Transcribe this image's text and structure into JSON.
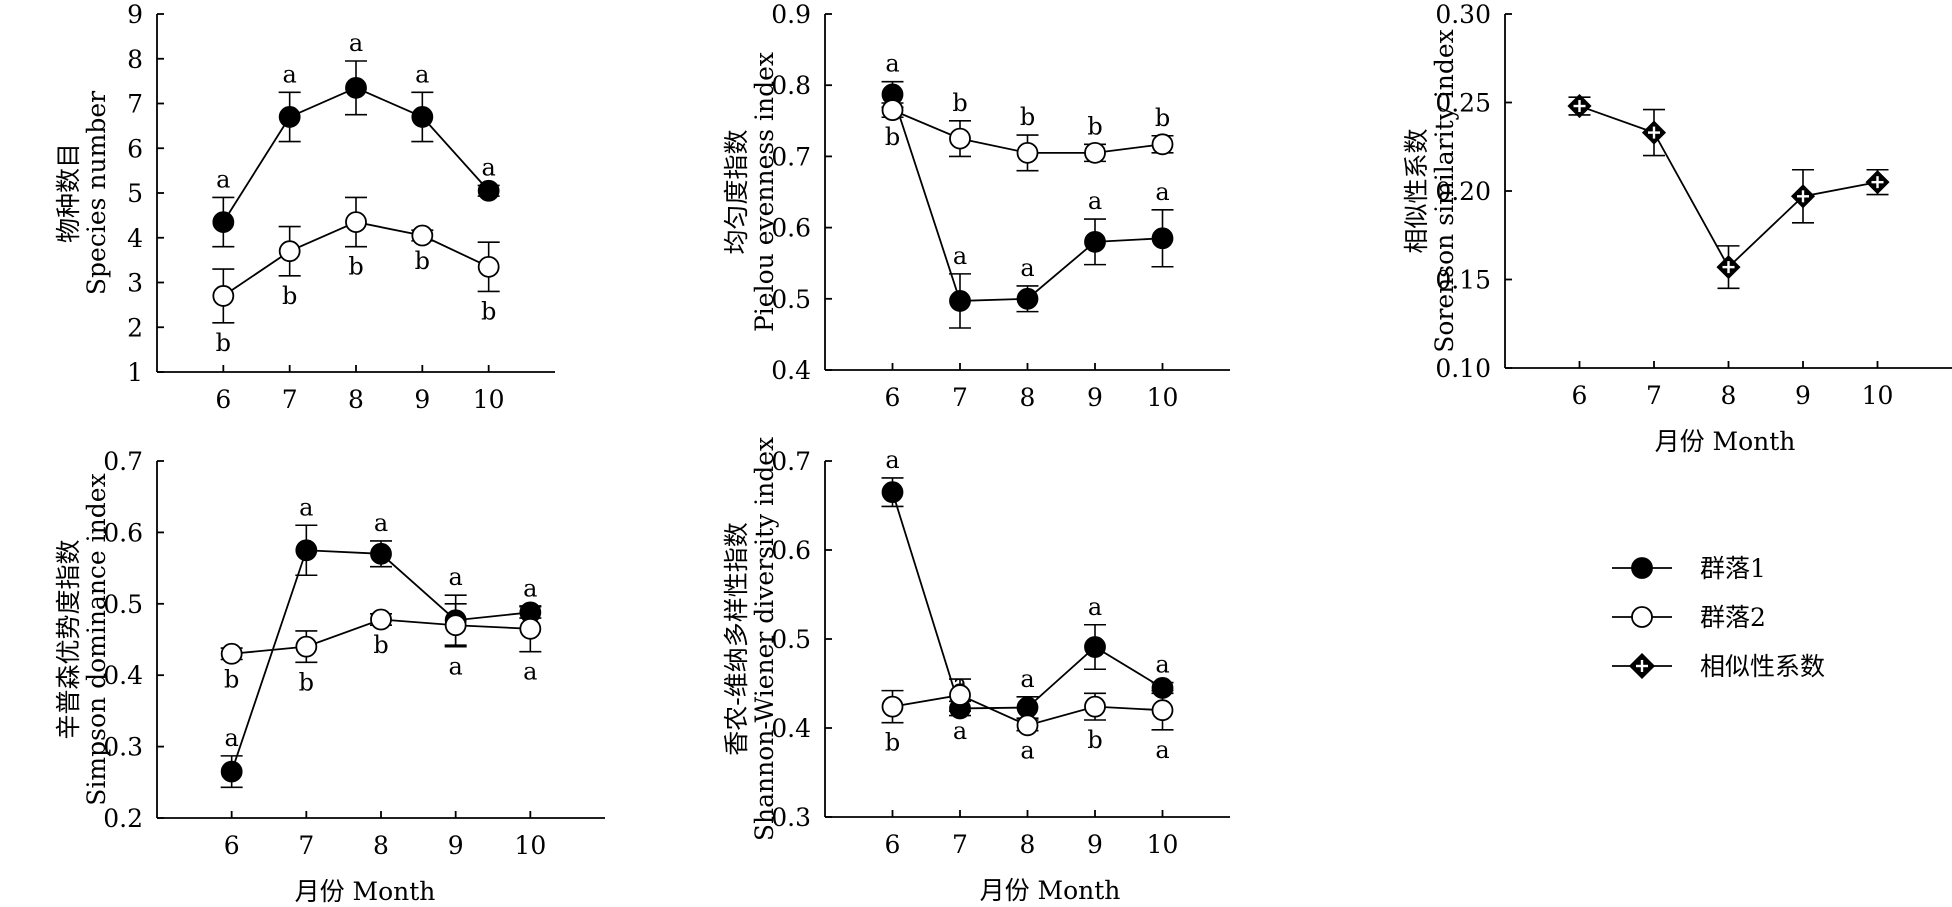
{
  "colors": {
    "ink": "#000000",
    "paper": "#ffffff"
  },
  "legend": {
    "items": [
      {
        "label": "群落1",
        "marker": "filled-circle"
      },
      {
        "label": "群落2",
        "marker": "open-circle"
      },
      {
        "label": "相似性系数",
        "marker": "diamond-cross"
      }
    ]
  },
  "chart_data": [
    {
      "id": "species",
      "type": "line",
      "ylabel_cn": "物种数目",
      "ylabel_en": "Species number",
      "xlabel": "",
      "x": [
        6,
        7,
        8,
        9,
        10
      ],
      "ylim": [
        1,
        9
      ],
      "yticks": [
        1,
        2,
        3,
        4,
        5,
        6,
        7,
        8,
        9
      ],
      "ytick_labels": [
        "1",
        "2",
        "3",
        "4",
        "5",
        "6",
        "7",
        "8",
        "9"
      ],
      "series": [
        {
          "name": "群落1",
          "marker": "filled",
          "values": [
            4.35,
            6.7,
            7.35,
            6.7,
            5.05
          ],
          "err": [
            0.55,
            0.55,
            0.6,
            0.55,
            0.12
          ],
          "labels": [
            "a",
            "a",
            "a",
            "a",
            "a"
          ],
          "label_pos": [
            "above",
            "above",
            "above",
            "above",
            "above"
          ]
        },
        {
          "name": "群落2",
          "marker": "open",
          "values": [
            2.7,
            3.7,
            4.35,
            4.05,
            3.35
          ],
          "err": [
            0.6,
            0.55,
            0.55,
            0.12,
            0.55
          ],
          "labels": [
            "b",
            "b",
            "b",
            "b",
            "b"
          ],
          "label_pos": [
            "below",
            "below",
            "below",
            "below",
            "below"
          ]
        }
      ]
    },
    {
      "id": "evenness",
      "type": "line",
      "ylabel_cn": "均匀度指数",
      "ylabel_en": "Pielou evenness index",
      "xlabel": "",
      "x": [
        6,
        7,
        8,
        9,
        10
      ],
      "ylim": [
        0.4,
        0.9
      ],
      "yticks": [
        0.4,
        0.5,
        0.6,
        0.7,
        0.8,
        0.9
      ],
      "ytick_labels": [
        "0.4",
        "0.5",
        "0.6",
        "0.7",
        "0.8",
        "0.9"
      ],
      "series": [
        {
          "name": "群落1",
          "marker": "filled",
          "values": [
            0.787,
            0.497,
            0.5,
            0.58,
            0.585
          ],
          "err": [
            0.018,
            0.038,
            0.018,
            0.032,
            0.04
          ],
          "labels": [
            "a",
            "a",
            "a",
            "a",
            "a"
          ],
          "label_pos": [
            "above",
            "above",
            "above",
            "above",
            "above"
          ]
        },
        {
          "name": "群落2",
          "marker": "open",
          "values": [
            0.765,
            0.725,
            0.705,
            0.705,
            0.717
          ],
          "err": [
            0.01,
            0.025,
            0.025,
            0.012,
            0.012
          ],
          "labels": [
            "b",
            "b",
            "b",
            "b",
            "b"
          ],
          "label_pos": [
            "below",
            "above",
            "above",
            "above",
            "above"
          ]
        }
      ]
    },
    {
      "id": "sorenson",
      "type": "line",
      "ylabel_cn": "相似性系数",
      "ylabel_en": "Sorenson similarity index",
      "xlabel": "月份 Month",
      "x": [
        6,
        7,
        8,
        9,
        10
      ],
      "ylim": [
        0.1,
        0.3
      ],
      "yticks": [
        0.1,
        0.15,
        0.2,
        0.25,
        0.3
      ],
      "ytick_labels": [
        "0.10",
        "0.15",
        "0.20",
        "0.25",
        "0.30"
      ],
      "series": [
        {
          "name": "相似性系数",
          "marker": "diamond",
          "values": [
            0.248,
            0.233,
            0.157,
            0.197,
            0.205
          ],
          "err": [
            0.005,
            0.013,
            0.012,
            0.015,
            0.007
          ],
          "labels": [
            "",
            "",
            "",
            "",
            ""
          ],
          "label_pos": [
            "above",
            "above",
            "above",
            "above",
            "above"
          ]
        }
      ]
    },
    {
      "id": "simpson",
      "type": "line",
      "ylabel_cn": "辛普森优势度指数",
      "ylabel_en": "Simpson dominance index",
      "xlabel": "月份 Month",
      "x": [
        6,
        7,
        8,
        9,
        10
      ],
      "ylim": [
        0.2,
        0.7
      ],
      "yticks": [
        0.2,
        0.3,
        0.4,
        0.5,
        0.6,
        0.7
      ],
      "ytick_labels": [
        "0.2",
        "0.3",
        "0.4",
        "0.5",
        "0.6",
        "0.7"
      ],
      "series": [
        {
          "name": "群落1",
          "marker": "filled",
          "values": [
            0.265,
            0.575,
            0.57,
            0.477,
            0.488
          ],
          "err": [
            0.022,
            0.035,
            0.018,
            0.035,
            0.008
          ],
          "labels": [
            "a",
            "a",
            "a",
            "a",
            "a"
          ],
          "label_pos": [
            "above",
            "above",
            "above",
            "above",
            "above"
          ]
        },
        {
          "name": "群落2",
          "marker": "open",
          "values": [
            0.43,
            0.44,
            0.478,
            0.47,
            0.465
          ],
          "err": [
            0.008,
            0.022,
            0.008,
            0.03,
            0.032
          ],
          "labels": [
            "b",
            "b",
            "b",
            "a",
            "a"
          ],
          "label_pos": [
            "below",
            "below",
            "below",
            "below",
            "below"
          ]
        }
      ]
    },
    {
      "id": "shannon",
      "type": "line",
      "ylabel_cn": "香农-维纳多样性指数",
      "ylabel_en": "Shannon-Wiener diversity index",
      "xlabel": "月份 Month",
      "x": [
        6,
        7,
        8,
        9,
        10
      ],
      "ylim": [
        0.3,
        0.7
      ],
      "yticks": [
        0.3,
        0.4,
        0.5,
        0.6,
        0.7
      ],
      "ytick_labels": [
        "0.3",
        "0.4",
        "0.5",
        "0.6",
        "0.7"
      ],
      "series": [
        {
          "name": "群落1",
          "marker": "filled",
          "values": [
            0.665,
            0.422,
            0.423,
            0.491,
            0.445
          ],
          "err": [
            0.016,
            0.008,
            0.012,
            0.025,
            0.006
          ],
          "labels": [
            "a",
            "a",
            "a",
            "a",
            "a"
          ],
          "label_pos": [
            "above",
            "above",
            "above",
            "above",
            "above"
          ]
        },
        {
          "name": "群落2",
          "marker": "open",
          "values": [
            0.424,
            0.437,
            0.403,
            0.424,
            0.42
          ],
          "err": [
            0.018,
            0.018,
            0.006,
            0.015,
            0.022
          ],
          "labels": [
            "b",
            "a",
            "a",
            "b",
            "a"
          ],
          "label_pos": [
            "below",
            "below",
            "below",
            "below",
            "below"
          ]
        }
      ]
    }
  ]
}
